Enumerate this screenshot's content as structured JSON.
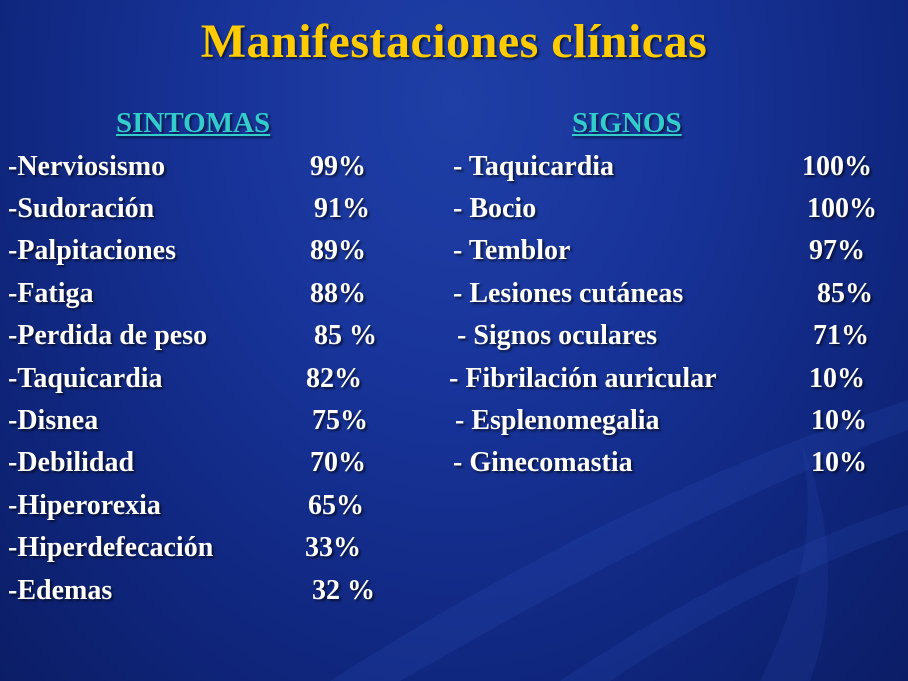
{
  "title": "Manifestaciones clínicas",
  "sintomas": {
    "heading": "SINTOMAS",
    "items": [
      {
        "label": "-Nerviosismo",
        "value": "99%"
      },
      {
        "label": "-Sudoración",
        "value": "91%"
      },
      {
        "label": "-Palpitaciones",
        "value": "89%"
      },
      {
        "label": "-Fatiga",
        "value": "88%"
      },
      {
        "label": "-Perdida de peso",
        "value": "85 %"
      },
      {
        "label": "-Taquicardia",
        "value": "82%"
      },
      {
        "label": "-Disnea",
        "value": "75%"
      },
      {
        "label": "-Debilidad",
        "value": "70%"
      },
      {
        "label": "-Hiperorexia",
        "value": "65%"
      },
      {
        "label": "-Hiperdefecación",
        "value": "33%"
      },
      {
        "label": "-Edemas",
        "value": "32 %"
      }
    ]
  },
  "signos": {
    "heading": "SIGNOS",
    "items": [
      {
        "label": "- Taquicardia",
        "value": "100%"
      },
      {
        "label": "- Bocio",
        "value": "100%"
      },
      {
        "label": "- Temblor",
        "value": "97%"
      },
      {
        "label": "- Lesiones cutáneas",
        "value": "85%"
      },
      {
        "label": "- Signos oculares",
        "value": "71%"
      },
      {
        "label": "- Fibrilación auricular",
        "value": "10%"
      },
      {
        "label": "- Esplenomegalia",
        "value": "10%"
      },
      {
        "label": "- Ginecomastia",
        "value": "10%"
      }
    ]
  },
  "colors": {
    "background": "#13308f",
    "title": "#ffcc00",
    "heading": "#33cccc",
    "text": "#ffffff"
  }
}
